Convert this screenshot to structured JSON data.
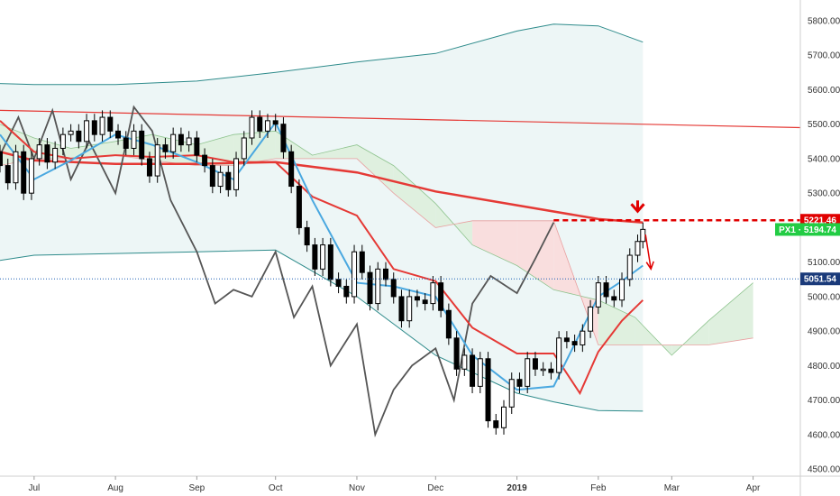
{
  "chart_data": {
    "type": "candlestick",
    "instrument": "PX1",
    "grid": false,
    "colors": {
      "background": "#ffffff",
      "candle": "#000000",
      "lagging_line": "#555555",
      "conversion_line": "#4aa8e0",
      "base_line": "#e53935",
      "moving_average": "#e53935",
      "trend_line": "#e53935",
      "envelope": "#2e8b8b",
      "envelope_fill": "#edf6f6",
      "cloud_bull": "#dff0df",
      "cloud_bear": "#f9dede",
      "last_price_badge": "#22cc44",
      "dotted_level": "#1a5fb4",
      "dashed_level": "#e00000"
    },
    "y_axis": {
      "range": [
        4490,
        5860
      ],
      "ticks": [
        "4500.00",
        "4600.00",
        "4700.00",
        "4800.00",
        "4900.00",
        "5000.00",
        "5100.00",
        "5200.00",
        "5300.00",
        "5400.00",
        "5500.00",
        "5600.00",
        "5700.00",
        "5800.00"
      ],
      "tick_values": [
        4500,
        4600,
        4700,
        4800,
        4900,
        5000,
        5100,
        5200,
        5300,
        5400,
        5500,
        5600,
        5700,
        5800
      ]
    },
    "x_axis": {
      "labels": [
        "Jul",
        "Aug",
        "Sep",
        "Oct",
        "Nov",
        "Dec",
        "2019",
        "Feb",
        "Mar",
        "Apr"
      ],
      "label_dates": [
        "2018-07-01",
        "2018-08-01",
        "2018-09-01",
        "2018-10-01",
        "2018-11-01",
        "2018-12-01",
        "2019-01-01",
        "2019-02-01",
        "2019-03-01",
        "2019-04-01"
      ],
      "range": [
        "2018-06-18",
        "2019-04-19"
      ]
    },
    "levels": {
      "resistance": {
        "value": 5221.46,
        "label": "5221.46",
        "from": "2019-01-15",
        "to": "2019-04-19"
      },
      "last_price": {
        "value": 5194.74,
        "label": "PX1 · 5194.74"
      },
      "support": {
        "value": 5051.54,
        "label": "5051.54"
      }
    },
    "trend_line": {
      "x": [
        "2018-06-18",
        "2019-04-19"
      ],
      "y": [
        5540,
        5490
      ]
    },
    "moving_average": {
      "x": [
        "2018-06-18",
        "2018-07-01",
        "2018-08-01",
        "2018-09-01",
        "2018-10-01",
        "2018-11-01",
        "2018-12-01",
        "2019-01-01",
        "2019-02-01",
        "2019-02-18"
      ],
      "y": [
        5420,
        5395,
        5385,
        5385,
        5390,
        5360,
        5305,
        5265,
        5225,
        5215
      ]
    },
    "envelope": {
      "x": [
        "2018-06-18",
        "2018-07-01",
        "2018-08-01",
        "2018-09-01",
        "2018-10-01",
        "2018-11-01",
        "2018-12-01",
        "2019-01-01",
        "2019-01-15",
        "2019-02-01",
        "2019-02-18"
      ],
      "upper": [
        5618,
        5615,
        5615,
        5625,
        5650,
        5680,
        5705,
        5770,
        5790,
        5785,
        5738
      ],
      "lower": [
        5105,
        5120,
        5125,
        5130,
        5135,
        5000,
        4830,
        4720,
        4695,
        4670,
        4668
      ]
    },
    "conversion_line": {
      "x": [
        "2018-06-18",
        "2018-07-01",
        "2018-07-15",
        "2018-08-01",
        "2018-08-15",
        "2018-09-01",
        "2018-09-15",
        "2018-10-01",
        "2018-10-15",
        "2018-11-01",
        "2018-11-15",
        "2018-12-01",
        "2018-12-15",
        "2019-01-01",
        "2019-01-15",
        "2019-02-01",
        "2019-02-10",
        "2019-02-18"
      ],
      "y": [
        5470,
        5340,
        5395,
        5470,
        5440,
        5390,
        5340,
        5505,
        5280,
        5040,
        5030,
        5000,
        4830,
        4730,
        4740,
        5000,
        5045,
        5090
      ]
    },
    "base_line": {
      "x": [
        "2018-06-18",
        "2018-07-01",
        "2018-07-15",
        "2018-08-01",
        "2018-08-15",
        "2018-09-01",
        "2018-09-15",
        "2018-10-01",
        "2018-10-15",
        "2018-11-01",
        "2018-11-15",
        "2018-12-01",
        "2018-12-15",
        "2019-01-01",
        "2019-01-15",
        "2019-01-25",
        "2019-02-01",
        "2019-02-10",
        "2019-02-18"
      ],
      "y": [
        5510,
        5420,
        5400,
        5410,
        5405,
        5410,
        5390,
        5390,
        5290,
        5235,
        5080,
        5045,
        4910,
        4835,
        4835,
        4720,
        4840,
        4930,
        4990
      ]
    },
    "lagging_line": {
      "x": [
        "2018-06-18",
        "2018-06-25",
        "2018-07-01",
        "2018-07-08",
        "2018-07-15",
        "2018-07-22",
        "2018-08-01",
        "2018-08-08",
        "2018-08-15",
        "2018-08-22",
        "2018-09-01",
        "2018-09-08",
        "2018-09-15",
        "2018-09-22",
        "2018-10-01",
        "2018-10-08",
        "2018-10-15",
        "2018-10-22",
        "2018-11-01",
        "2018-11-08",
        "2018-11-15",
        "2018-11-22",
        "2018-12-01",
        "2018-12-08",
        "2018-12-15",
        "2018-12-22",
        "2019-01-01",
        "2019-01-08",
        "2019-01-15"
      ],
      "y": [
        5410,
        5520,
        5400,
        5540,
        5340,
        5450,
        5300,
        5550,
        5480,
        5280,
        5130,
        4980,
        5020,
        5000,
        5130,
        4940,
        5030,
        4800,
        4920,
        4600,
        4730,
        4800,
        4850,
        4700,
        4980,
        5060,
        5010,
        5110,
        5215
      ]
    },
    "ichimoku_cloud": {
      "x": [
        "2018-06-18",
        "2018-07-01",
        "2018-07-15",
        "2018-08-01",
        "2018-08-15",
        "2018-09-01",
        "2018-09-15",
        "2018-10-01",
        "2018-10-15",
        "2018-11-01",
        "2018-11-15",
        "2018-12-01",
        "2018-12-15",
        "2019-01-01",
        "2019-01-15",
        "2019-02-01",
        "2019-02-15",
        "2019-03-01",
        "2019-03-15",
        "2019-04-01"
      ],
      "span_a": [
        5500,
        5460,
        5430,
        5450,
        5470,
        5440,
        5470,
        5480,
        5410,
        5440,
        5380,
        5270,
        5150,
        5090,
        5020,
        4990,
        4940,
        4830,
        4930,
        5040
      ],
      "span_b": [
        5380,
        5400,
        5400,
        5410,
        5395,
        5380,
        5380,
        5400,
        5400,
        5400,
        5300,
        5200,
        5220,
        5220,
        5220,
        4860,
        4860,
        4860,
        4860,
        4880
      ]
    },
    "candles": {
      "x": [
        "2018-06-18",
        "2018-06-21",
        "2018-06-24",
        "2018-06-27",
        "2018-06-30",
        "2018-07-03",
        "2018-07-06",
        "2018-07-09",
        "2018-07-12",
        "2018-07-15",
        "2018-07-18",
        "2018-07-21",
        "2018-07-24",
        "2018-07-27",
        "2018-07-30",
        "2018-08-02",
        "2018-08-05",
        "2018-08-08",
        "2018-08-11",
        "2018-08-14",
        "2018-08-17",
        "2018-08-20",
        "2018-08-23",
        "2018-08-26",
        "2018-08-29",
        "2018-09-01",
        "2018-09-04",
        "2018-09-07",
        "2018-09-10",
        "2018-09-13",
        "2018-09-16",
        "2018-09-19",
        "2018-09-22",
        "2018-09-25",
        "2018-09-28",
        "2018-10-01",
        "2018-10-04",
        "2018-10-07",
        "2018-10-10",
        "2018-10-13",
        "2018-10-16",
        "2018-10-19",
        "2018-10-22",
        "2018-10-25",
        "2018-10-28",
        "2018-10-31",
        "2018-11-03",
        "2018-11-06",
        "2018-11-09",
        "2018-11-12",
        "2018-11-15",
        "2018-11-18",
        "2018-11-21",
        "2018-11-24",
        "2018-11-27",
        "2018-11-30",
        "2018-12-03",
        "2018-12-06",
        "2018-12-09",
        "2018-12-12",
        "2018-12-15",
        "2018-12-18",
        "2018-12-21",
        "2018-12-24",
        "2018-12-27",
        "2018-12-30",
        "2019-01-02",
        "2019-01-05",
        "2019-01-08",
        "2019-01-11",
        "2019-01-14",
        "2019-01-17",
        "2019-01-20",
        "2019-01-23",
        "2019-01-26",
        "2019-01-29",
        "2019-02-01",
        "2019-02-04",
        "2019-02-07",
        "2019-02-10",
        "2019-02-13",
        "2019-02-16",
        "2019-02-18"
      ],
      "close": [
        5380,
        5330,
        5420,
        5300,
        5400,
        5440,
        5390,
        5430,
        5470,
        5480,
        5450,
        5510,
        5470,
        5520,
        5480,
        5460,
        5430,
        5480,
        5400,
        5350,
        5440,
        5420,
        5470,
        5440,
        5460,
        5410,
        5380,
        5320,
        5360,
        5310,
        5400,
        5460,
        5520,
        5480,
        5510,
        5500,
        5420,
        5320,
        5200,
        5150,
        5080,
        5150,
        5050,
        5030,
        5000,
        5130,
        5070,
        4980,
        5080,
        5050,
        5000,
        4930,
        5000,
        4990,
        4980,
        5040,
        4960,
        4880,
        4790,
        4830,
        4740,
        4820,
        4640,
        4620,
        4680,
        4760,
        4740,
        4820,
        4790,
        4790,
        4780,
        4880,
        4870,
        4860,
        4900,
        4970,
        5040,
        5000,
        4990,
        5050,
        5120,
        5160,
        5195
      ]
    }
  }
}
